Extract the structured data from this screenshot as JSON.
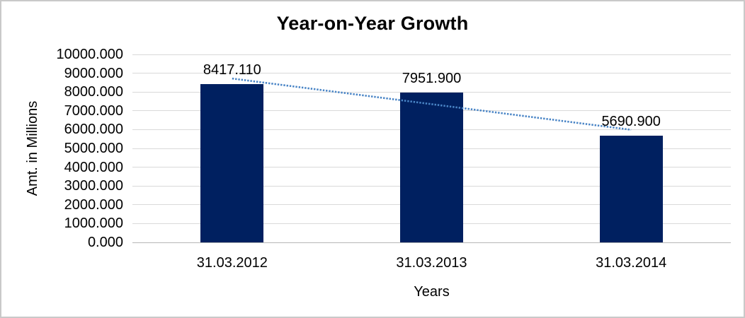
{
  "frame": {
    "background": "#ffffff",
    "border_color": "#c9c9c9"
  },
  "chart_data": {
    "type": "bar",
    "title": "Year-on-Year Growth",
    "xlabel": "Years",
    "ylabel": "Amt. in Millions",
    "categories": [
      "31.03.2012",
      "31.03.2013",
      "31.03.2014"
    ],
    "values": [
      8417.11,
      7951.9,
      5690.9
    ],
    "data_labels": [
      "8417.110",
      "7951.900",
      "5690.900"
    ],
    "y_ticks": [
      "10000.000",
      "9000.000",
      "8000.000",
      "7000.000",
      "6000.000",
      "5000.000",
      "4000.000",
      "3000.000",
      "2000.000",
      "1000.000",
      "0.000"
    ],
    "ylim": [
      0,
      10000
    ],
    "grid": true,
    "legend_position": "none",
    "bar_color": "#002060",
    "gridline_color": "#d9d9d9",
    "axis_line_color": "#b7b7b7",
    "text_color": "#000000",
    "trendline": {
      "type": "linear",
      "style": "dotted",
      "color": "#4a85c6",
      "span": "first-to-last-category"
    }
  }
}
